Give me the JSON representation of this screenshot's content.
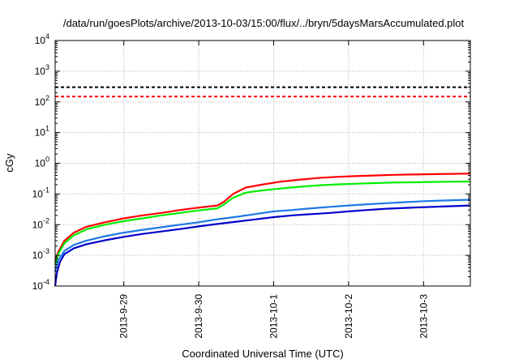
{
  "chart_data": {
    "type": "line",
    "title": "/data/run/goesPlots/archive/2013-10-03/15:00/flux/../bryn/5daysMarsAccumulated.plot",
    "xlabel": "Coordinated Universal Time (UTC)",
    "ylabel": "cGy",
    "x_scale": "date",
    "y_scale": "log",
    "xlim": [
      "2013-09-28T02:00",
      "2013-10-03T15:00"
    ],
    "ylim": [
      0.0001,
      10000
    ],
    "grid": true,
    "x_ticks": [
      {
        "value": "2013-09-29T00:00",
        "label": "2013-9-29"
      },
      {
        "value": "2013-09-30T00:00",
        "label": "2013-9-30"
      },
      {
        "value": "2013-10-01T00:00",
        "label": "2013-10-1"
      },
      {
        "value": "2013-10-02T00:00",
        "label": "2013-10-2"
      },
      {
        "value": "2013-10-03T00:00",
        "label": "2013-10-3"
      }
    ],
    "y_ticks": [
      {
        "value": 0.0001,
        "mantissa": "10",
        "exp": "-4"
      },
      {
        "value": 0.001,
        "mantissa": "10",
        "exp": "-3"
      },
      {
        "value": 0.01,
        "mantissa": "10",
        "exp": "-2"
      },
      {
        "value": 0.1,
        "mantissa": "10",
        "exp": "-1"
      },
      {
        "value": 1,
        "mantissa": "10",
        "exp": "0"
      },
      {
        "value": 10,
        "mantissa": "10",
        "exp": "1"
      },
      {
        "value": 100,
        "mantissa": "10",
        "exp": "2"
      },
      {
        "value": 1000,
        "mantissa": "10",
        "exp": "3"
      },
      {
        "value": 10000,
        "mantissa": "10",
        "exp": "4"
      }
    ],
    "reference_lines": [
      {
        "y": 300,
        "color": "#000000",
        "style": "dashed"
      },
      {
        "y": 150,
        "color": "#ff0000",
        "style": "dashed"
      }
    ],
    "series": [
      {
        "color": "#ff0000",
        "x": [
          "2013-09-28T02:00",
          "2013-09-28T03:00",
          "2013-09-28T05:00",
          "2013-09-28T08:00",
          "2013-09-28T12:00",
          "2013-09-28T18:00",
          "2013-09-29T00:00",
          "2013-09-29T06:00",
          "2013-09-29T12:00",
          "2013-09-29T18:00",
          "2013-09-30T00:00",
          "2013-09-30T06:00",
          "2013-09-30T08:00",
          "2013-09-30T11:00",
          "2013-09-30T15:00",
          "2013-09-30T20:00",
          "2013-10-01T02:00",
          "2013-10-01T08:00",
          "2013-10-01T14:00",
          "2013-10-01T20:00",
          "2013-10-02T02:00",
          "2013-10-02T08:00",
          "2013-10-02T14:00",
          "2013-10-02T20:00",
          "2013-10-03T02:00",
          "2013-10-03T08:00",
          "2013-10-03T15:00"
        ],
        "y": [
          0.0006,
          0.0013,
          0.003,
          0.0055,
          0.0085,
          0.012,
          0.016,
          0.02,
          0.024,
          0.03,
          0.036,
          0.042,
          0.055,
          0.1,
          0.16,
          0.2,
          0.25,
          0.29,
          0.33,
          0.36,
          0.38,
          0.4,
          0.42,
          0.43,
          0.44,
          0.45,
          0.46
        ]
      },
      {
        "color": "#00ee00",
        "x": [
          "2013-09-28T02:00",
          "2013-09-28T03:00",
          "2013-09-28T05:00",
          "2013-09-28T08:00",
          "2013-09-28T12:00",
          "2013-09-28T18:00",
          "2013-09-29T00:00",
          "2013-09-29T06:00",
          "2013-09-29T12:00",
          "2013-09-29T18:00",
          "2013-09-30T00:00",
          "2013-09-30T06:00",
          "2013-09-30T08:00",
          "2013-09-30T11:00",
          "2013-09-30T15:00",
          "2013-09-30T20:00",
          "2013-10-01T02:00",
          "2013-10-01T08:00",
          "2013-10-01T14:00",
          "2013-10-01T20:00",
          "2013-10-02T02:00",
          "2013-10-02T08:00",
          "2013-10-02T14:00",
          "2013-10-02T20:00",
          "2013-10-03T02:00",
          "2013-10-03T08:00",
          "2013-10-03T15:00"
        ],
        "y": [
          0.0005,
          0.0011,
          0.0025,
          0.0045,
          0.007,
          0.01,
          0.013,
          0.016,
          0.02,
          0.024,
          0.029,
          0.034,
          0.045,
          0.075,
          0.11,
          0.13,
          0.15,
          0.17,
          0.19,
          0.205,
          0.215,
          0.225,
          0.235,
          0.24,
          0.245,
          0.25,
          0.255
        ]
      },
      {
        "color": "#1e78e6",
        "x": [
          "2013-09-28T02:00",
          "2013-09-28T03:00",
          "2013-09-28T05:00",
          "2013-09-28T08:00",
          "2013-09-28T12:00",
          "2013-09-28T18:00",
          "2013-09-29T00:00",
          "2013-09-29T06:00",
          "2013-09-29T12:00",
          "2013-09-29T18:00",
          "2013-09-30T00:00",
          "2013-09-30T06:00",
          "2013-09-30T12:00",
          "2013-09-30T18:00",
          "2013-10-01T00:00",
          "2013-10-01T06:00",
          "2013-10-01T12:00",
          "2013-10-01T18:00",
          "2013-10-02T00:00",
          "2013-10-02T06:00",
          "2013-10-02T12:00",
          "2013-10-02T18:00",
          "2013-10-03T00:00",
          "2013-10-03T06:00",
          "2013-10-03T15:00"
        ],
        "y": [
          0.0003,
          0.0007,
          0.0014,
          0.0022,
          0.003,
          0.0042,
          0.0055,
          0.0068,
          0.0082,
          0.01,
          0.012,
          0.015,
          0.018,
          0.022,
          0.027,
          0.03,
          0.034,
          0.038,
          0.042,
          0.046,
          0.05,
          0.054,
          0.058,
          0.061,
          0.065
        ]
      },
      {
        "color": "#0000cc",
        "x": [
          "2013-09-28T02:00",
          "2013-09-28T02:30",
          "2013-09-28T03:30",
          "2013-09-28T05:00",
          "2013-09-28T08:00",
          "2013-09-28T12:00",
          "2013-09-28T18:00",
          "2013-09-29T00:00",
          "2013-09-29T06:00",
          "2013-09-29T12:00",
          "2013-09-29T18:00",
          "2013-09-30T00:00",
          "2013-09-30T06:00",
          "2013-09-30T12:00",
          "2013-09-30T18:00",
          "2013-10-01T00:00",
          "2013-10-01T06:00",
          "2013-10-01T12:00",
          "2013-10-01T18:00",
          "2013-10-02T00:00",
          "2013-10-02T06:00",
          "2013-10-02T12:00",
          "2013-10-02T18:00",
          "2013-10-03T00:00",
          "2013-10-03T06:00",
          "2013-10-03T15:00"
        ],
        "y": [
          0.0001,
          0.00025,
          0.0006,
          0.0011,
          0.0017,
          0.0023,
          0.0031,
          0.004,
          0.005,
          0.006,
          0.0072,
          0.0088,
          0.0105,
          0.0125,
          0.0148,
          0.0175,
          0.02,
          0.022,
          0.024,
          0.027,
          0.03,
          0.033,
          0.035,
          0.037,
          0.039,
          0.042
        ]
      }
    ]
  }
}
